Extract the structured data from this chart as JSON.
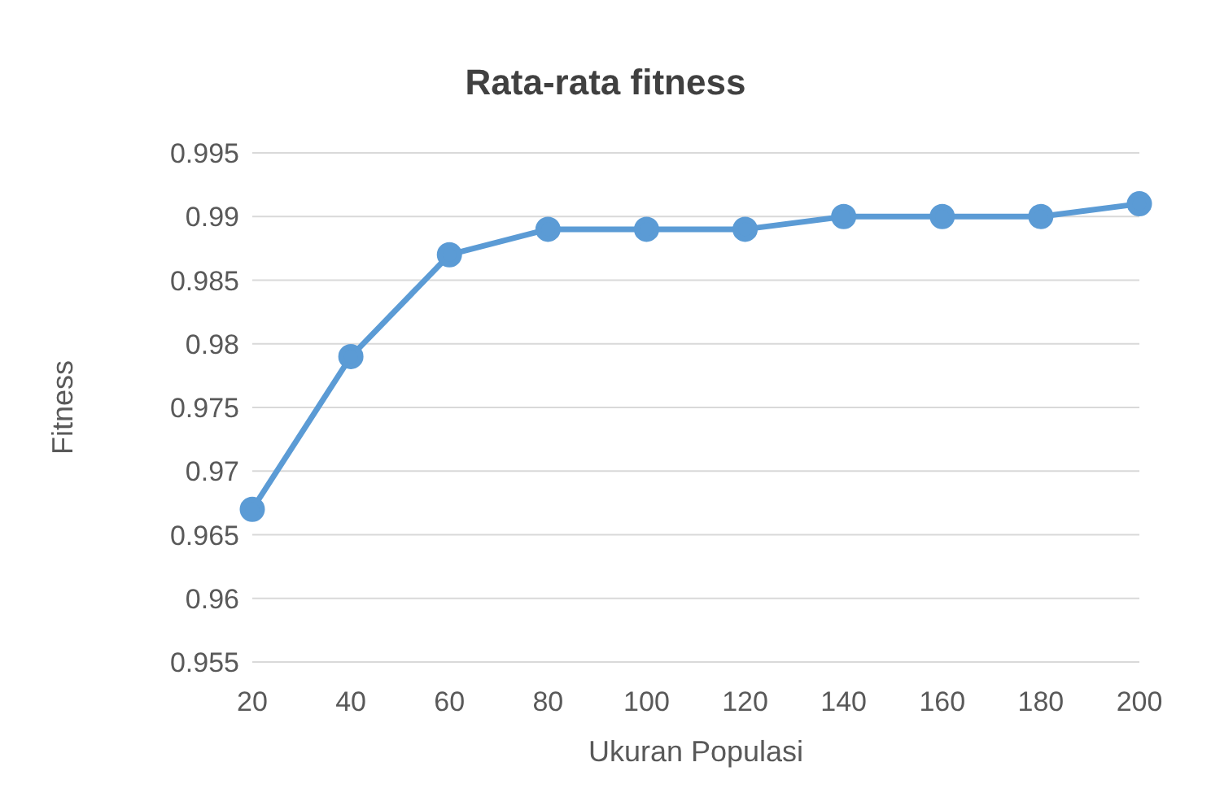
{
  "chart_data": {
    "type": "line",
    "title": "Rata-rata fitness",
    "xlabel": "Ukuran Populasi",
    "ylabel": "Fitness",
    "categories": [
      "20",
      "40",
      "60",
      "80",
      "100",
      "120",
      "140",
      "160",
      "180",
      "200"
    ],
    "series": [
      {
        "color": "#5b9bd5",
        "values": [
          0.967,
          0.979,
          0.987,
          0.989,
          0.989,
          0.989,
          0.99,
          0.99,
          0.99,
          0.991
        ]
      }
    ],
    "ylim": [
      0.955,
      0.995
    ],
    "yticks": [
      0.955,
      0.96,
      0.965,
      0.97,
      0.975,
      0.98,
      0.985,
      0.99,
      0.995
    ],
    "grid": "y",
    "marker": "circle",
    "line_style": "solid",
    "legend": false
  }
}
